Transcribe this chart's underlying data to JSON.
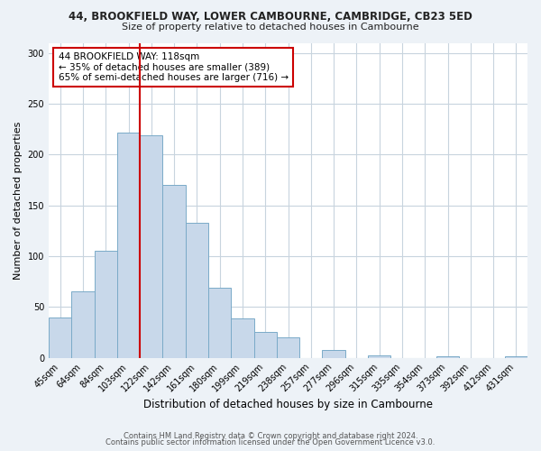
{
  "title": "44, BROOKFIELD WAY, LOWER CAMBOURNE, CAMBRIDGE, CB23 5ED",
  "subtitle": "Size of property relative to detached houses in Cambourne",
  "xlabel": "Distribution of detached houses by size in Cambourne",
  "ylabel": "Number of detached properties",
  "bar_labels": [
    "45sqm",
    "64sqm",
    "84sqm",
    "103sqm",
    "122sqm",
    "142sqm",
    "161sqm",
    "180sqm",
    "199sqm",
    "219sqm",
    "238sqm",
    "257sqm",
    "277sqm",
    "296sqm",
    "315sqm",
    "335sqm",
    "354sqm",
    "373sqm",
    "392sqm",
    "412sqm",
    "431sqm"
  ],
  "bar_values": [
    40,
    65,
    105,
    222,
    219,
    170,
    133,
    69,
    39,
    25,
    20,
    0,
    8,
    0,
    2,
    0,
    0,
    1,
    0,
    0,
    1
  ],
  "bar_color": "#c8d8ea",
  "bar_edge_color": "#7aaac8",
  "vline_index": 4,
  "vline_color": "#cc0000",
  "annotation_line1": "44 BROOKFIELD WAY: 118sqm",
  "annotation_line2": "← 35% of detached houses are smaller (389)",
  "annotation_line3": "65% of semi-detached houses are larger (716) →",
  "annotation_box_color": "#ffffff",
  "annotation_box_edge": "#cc0000",
  "ylim": [
    0,
    310
  ],
  "yticks": [
    0,
    50,
    100,
    150,
    200,
    250,
    300
  ],
  "footer1": "Contains HM Land Registry data © Crown copyright and database right 2024.",
  "footer2": "Contains public sector information licensed under the Open Government Licence v3.0.",
  "bg_color": "#edf2f7",
  "plot_bg_color": "#ffffff",
  "grid_color": "#c8d4de",
  "title_fontsize": 8.5,
  "subtitle_fontsize": 8,
  "ylabel_fontsize": 8,
  "xlabel_fontsize": 8.5,
  "tick_fontsize": 7,
  "footer_fontsize": 6
}
